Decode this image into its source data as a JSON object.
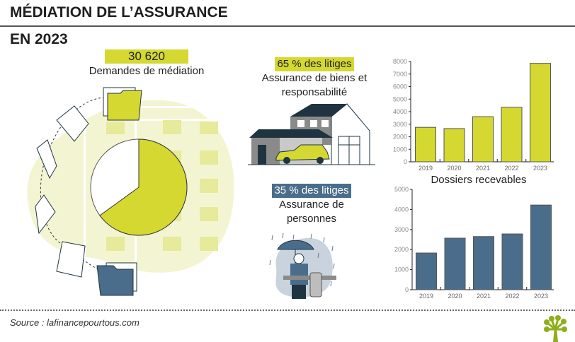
{
  "header": {
    "title": "MÉDIATION DE L’ASSURANCE",
    "subtitle": "EN 2023"
  },
  "summary": {
    "total_value": "30 620",
    "total_label": "Demandes de médiation",
    "pie": {
      "slices": [
        {
          "name": "Assurance de biens et responsabilité",
          "percent": 65,
          "color": "#d4d831"
        },
        {
          "name": "Assurance de personnes",
          "percent": 35,
          "color": "#ffffff"
        }
      ]
    }
  },
  "categories": [
    {
      "highlight": "65 % des litiges",
      "label_line1": "Assurance de biens et",
      "label_line2": "responsabilité",
      "color": "#d4d831",
      "text_color": "#222222",
      "illustration": "house-car-illustration"
    },
    {
      "highlight": "35 % des litiges",
      "label_line1": "Assurance de",
      "label_line2": "personnes",
      "color": "#4a6d8c",
      "text_color": "#ffffff",
      "illustration": "man-umbrella-rain-illustration"
    }
  ],
  "colors": {
    "lime": "#d4d831",
    "lime_light": "#f3f5d2",
    "blue": "#4a6d8c",
    "dark": "#1f3440"
  },
  "chart_data": [
    {
      "type": "bar",
      "title": "",
      "xlabel": "Dossiers recevables",
      "ylabel": "",
      "categories": [
        "2019",
        "2020",
        "2021",
        "2022",
        "2023"
      ],
      "values": [
        2750,
        2650,
        3600,
        4350,
        7850
      ],
      "ylim": [
        0,
        8000
      ],
      "yticks": [
        0,
        1000,
        2000,
        3000,
        4000,
        5000,
        6000,
        7000,
        8000
      ],
      "color": "#d4d831",
      "grid": false,
      "legend": "none"
    },
    {
      "type": "bar",
      "title": "",
      "xlabel": "",
      "ylabel": "",
      "categories": [
        "2019",
        "2020",
        "2021",
        "2022",
        "2023"
      ],
      "values": [
        1830,
        2570,
        2650,
        2780,
        4220
      ],
      "ylim": [
        0,
        5000
      ],
      "yticks": [
        0,
        1000,
        2000,
        3000,
        4000,
        5000
      ],
      "color": "#4a6d8c",
      "grid": false,
      "legend": "none"
    }
  ],
  "footer": {
    "source": "Source : lafinancepourtous.com",
    "logo": "tree-logo-icon"
  }
}
